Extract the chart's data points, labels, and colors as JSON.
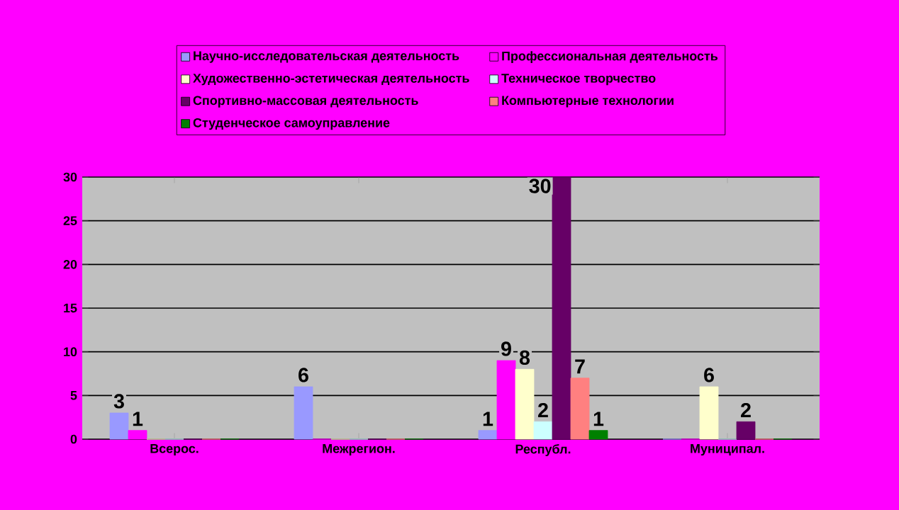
{
  "chart_data": {
    "type": "bar",
    "categories": [
      "Всерос.",
      "Межрегион.",
      "Республ.",
      "Муниципал."
    ],
    "series": [
      {
        "name": "Научно-исследовательская деятельность",
        "color": "#9999ff",
        "values": [
          3,
          6,
          1,
          0
        ],
        "value_labels": [
          "3",
          "6",
          "1",
          null
        ]
      },
      {
        "name": "Профессиональная деятельность",
        "color": "#ff00ff",
        "values": [
          1,
          0,
          9,
          0
        ],
        "value_labels": [
          "1",
          null,
          "9",
          null
        ]
      },
      {
        "name": "Художественно-эстетическая деятельность",
        "color": "#ffffcc",
        "values": [
          0,
          0,
          8,
          6
        ],
        "value_labels": [
          null,
          null,
          "8",
          "6"
        ]
      },
      {
        "name": "Техническое творчество",
        "color": "#ccffff",
        "values": [
          0,
          0,
          2,
          0
        ],
        "value_labels": [
          null,
          null,
          "2",
          null
        ]
      },
      {
        "name": "Спортивно-массовая деятельность",
        "color": "#660066",
        "values": [
          0,
          0,
          30,
          2
        ],
        "value_labels": [
          null,
          null,
          "30",
          "2"
        ]
      },
      {
        "name": "Компьютерные технологии",
        "color": "#ff8080",
        "values": [
          0,
          0,
          7,
          0
        ],
        "value_labels": [
          null,
          null,
          "7",
          null
        ]
      },
      {
        "name": "Студенческое самоуправление",
        "color": "#008000",
        "values": [
          0,
          0,
          1,
          0
        ],
        "value_labels": [
          null,
          null,
          "1",
          null
        ]
      }
    ],
    "ylim": [
      0,
      30
    ],
    "yticks": [
      0,
      5,
      10,
      15,
      20,
      25,
      30
    ],
    "grid": "y",
    "legend": "top"
  }
}
